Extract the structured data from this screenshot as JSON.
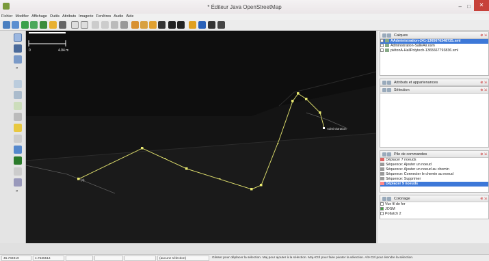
{
  "window": {
    "title": "* Éditeur Java OpenStreetMap",
    "minimize": "–",
    "maximize": "□",
    "close": "✕"
  },
  "menu": [
    "Fichier",
    "Modifier",
    "Affichage",
    "Outils",
    "Attributs",
    "Imagerie",
    "Fenêtres",
    "Audio",
    "Aide"
  ],
  "map": {
    "scale_zero": "0",
    "scale_length": "4.04 m",
    "node_labels": {
      "start": "(4)",
      "end": "Administration"
    }
  },
  "panels": {
    "layers": {
      "title": "Calques",
      "items": [
        "AAdministration-241-1365676348725.xml",
        "Administration-SalleAir.osm",
        "piétonA-HallPolytech-1365667793836.xml"
      ]
    },
    "attributes": {
      "title": "Attributs et appartenances"
    },
    "selection": {
      "title": "Sélection"
    },
    "commands": {
      "title": "Pile de commandes",
      "items": [
        "Déplacer 7 noeuds",
        "Séquence: Ajouter un noeud",
        "Séquence: Ajouter un noeud au chemin",
        "Séquence: Connecter le chemin au noeud",
        "Séquence: Supprimer",
        "Déplacer 9 noeuds"
      ]
    },
    "styles": {
      "title": "Coloriage",
      "items": [
        "Vue fil de fer",
        "JOSM",
        "Potlatch 2"
      ]
    }
  },
  "status": {
    "lat": "45.784919",
    "lon": "4.7535514",
    "field3": "",
    "field4": "",
    "field5": "",
    "selection": "(aucune sélection)",
    "help": "Glisser pour déplacer la sélection. Maj pour ajouter à la sélection. Maj+Ctrl pour faire pivoter la sélection. Alt+Ctrl pour étendre la sélection."
  }
}
